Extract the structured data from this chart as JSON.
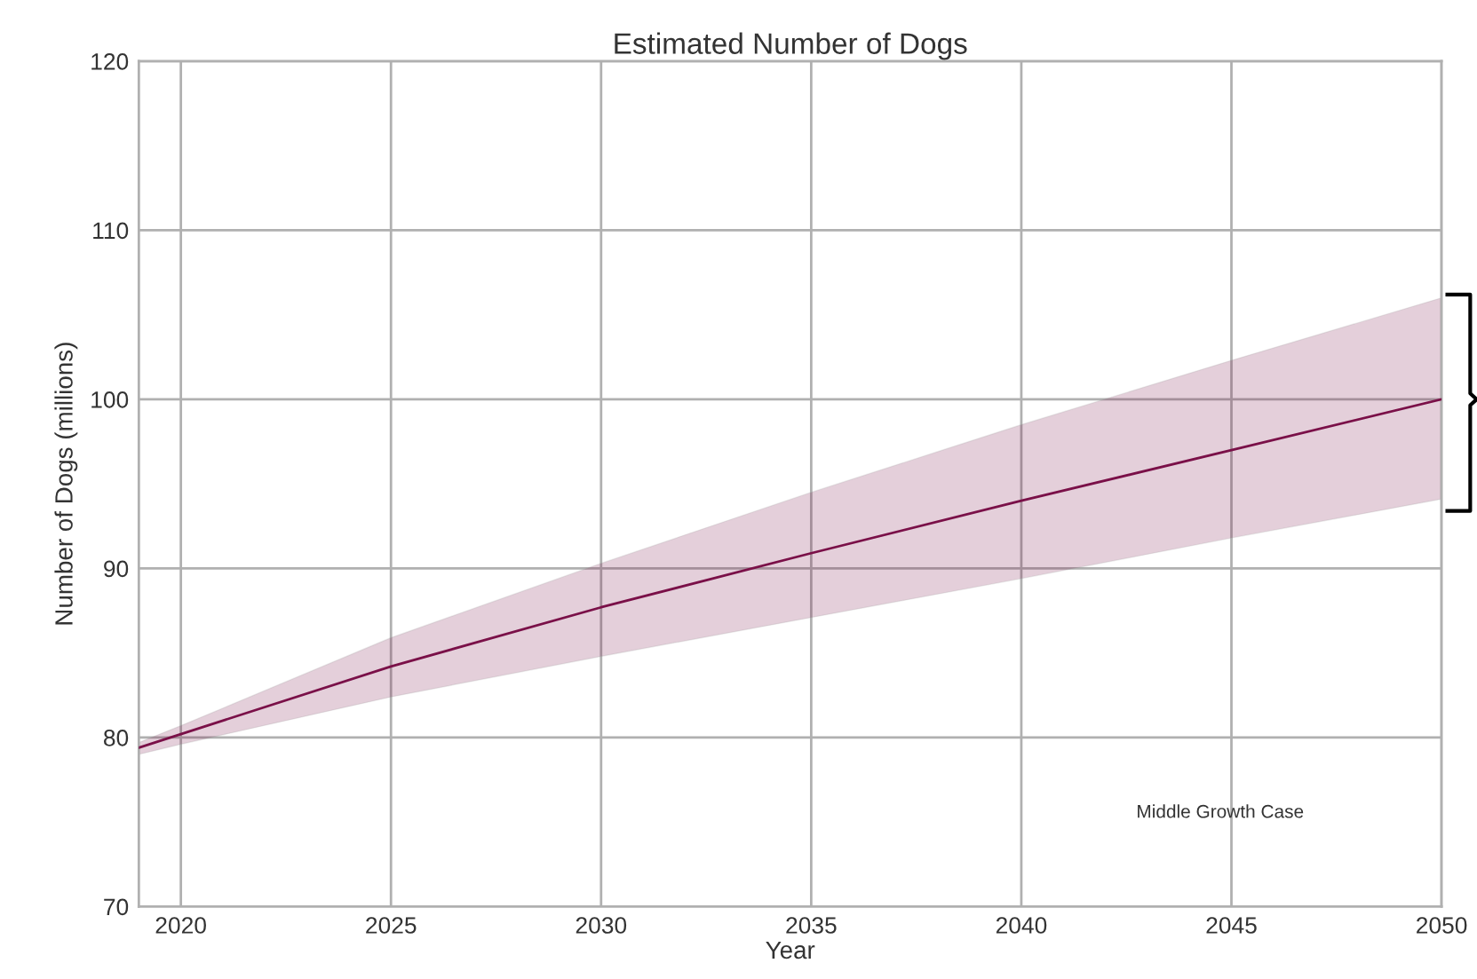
{
  "chart_data": {
    "type": "line",
    "title": "Estimated Number of Dogs",
    "xlabel": "Year",
    "ylabel": "Number of Dogs (millions)",
    "x": [
      2019,
      2020,
      2025,
      2030,
      2035,
      2040,
      2045,
      2050
    ],
    "series": [
      {
        "color": "#7a1048",
        "values": [
          79.4,
          80.2,
          84.2,
          87.7,
          90.9,
          94.0,
          97.0,
          100.0
        ],
        "lower": [
          79.0,
          79.6,
          82.4,
          84.8,
          87.1,
          89.4,
          91.8,
          94.1
        ],
        "upper": [
          79.7,
          80.7,
          85.9,
          90.3,
          94.5,
          98.5,
          102.3,
          106.0
        ]
      }
    ],
    "xlim": [
      2019,
      2050
    ],
    "xticks": [
      2020,
      2025,
      2030,
      2035,
      2040,
      2045,
      2050
    ],
    "ylim": [
      70,
      120
    ],
    "yticks": [
      70,
      80,
      90,
      100,
      110,
      120
    ],
    "grid": true,
    "marker": "none",
    "line_style": "solid",
    "annotations": [
      "Middle Growth Case"
    ]
  }
}
